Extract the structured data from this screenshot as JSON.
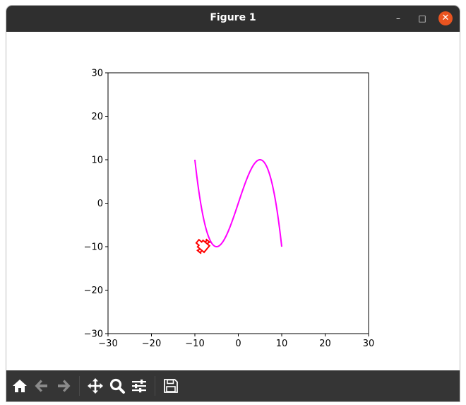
{
  "window": {
    "title": "Figure 1"
  },
  "titlebar_buttons": {
    "minimize": "–",
    "maximize": "□",
    "close": "✕"
  },
  "toolbar": [
    {
      "name": "home-button",
      "icon": "home-icon",
      "enabled": true
    },
    {
      "name": "back-button",
      "icon": "arrow-left-icon",
      "enabled": false
    },
    {
      "name": "forward-button",
      "icon": "arrow-right-icon",
      "enabled": false
    },
    {
      "name": "pan-button",
      "icon": "move-icon",
      "enabled": true
    },
    {
      "name": "zoom-button",
      "icon": "magnifier-icon",
      "enabled": true
    },
    {
      "name": "configure-subplots-button",
      "icon": "sliders-icon",
      "enabled": true
    },
    {
      "name": "save-button",
      "icon": "floppy-disk-icon",
      "enabled": true
    }
  ],
  "chart_data": {
    "type": "line",
    "title": "",
    "xlabel": "",
    "ylabel": "",
    "xlim": [
      -30,
      30
    ],
    "ylim": [
      -30,
      30
    ],
    "xticks": [
      -30,
      -20,
      -10,
      0,
      10,
      20,
      30
    ],
    "yticks": [
      -30,
      -20,
      -10,
      0,
      10,
      20,
      30
    ],
    "xtick_labels": [
      "−30",
      "−20",
      "−10",
      "0",
      "10",
      "20",
      "30"
    ],
    "ytick_labels": [
      "−30",
      "−20",
      "−10",
      "0",
      "10",
      "20",
      "30"
    ],
    "grid": false,
    "series": [
      {
        "style": "trajectory",
        "color": "#ff00ff",
        "curve": "x = 10·sin(t), y = 10·sin(3t)",
        "x_range": [
          -10,
          10
        ],
        "y_range": [
          -10,
          10
        ]
      }
    ],
    "marker": {
      "shape": "vehicle-outline",
      "color": "#ff0000",
      "x": -8.5,
      "y": -9.5
    }
  }
}
